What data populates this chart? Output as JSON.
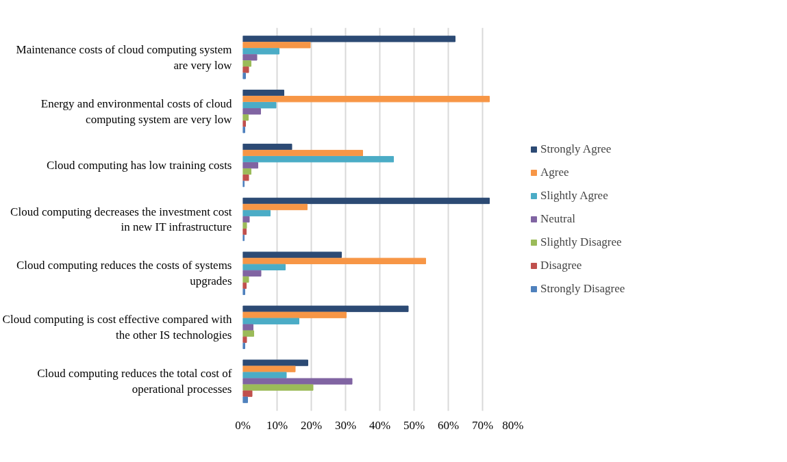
{
  "chart_data": {
    "type": "bar",
    "orientation": "horizontal",
    "categories": [
      "Maintenance costs of cloud computing system\nare very low",
      "Energy and environmental costs of cloud\ncomputing system are very low",
      "Cloud computing has low training costs",
      "Cloud computing decreases the investment cost\nin new IT infrastructure",
      "Cloud computing reduces the costs of systems\nupgrades",
      "Cloud computing is cost effective compared with\nthe other IS technologies",
      "Cloud computing reduces the total cost of\noperational processes"
    ],
    "series": [
      {
        "name": "Strongly Agree",
        "color": "#2c4a74",
        "values": [
          62,
          12,
          14.3,
          72,
          28.8,
          48.3,
          19
        ]
      },
      {
        "name": "Agree",
        "color": "#f79646",
        "values": [
          19.7,
          72,
          35,
          18.8,
          53.4,
          30.2,
          15.3
        ]
      },
      {
        "name": "Slightly Agree",
        "color": "#4bacc6",
        "values": [
          10.6,
          9.7,
          44,
          8,
          12.4,
          16.4,
          12.7
        ]
      },
      {
        "name": "Neutral",
        "color": "#8064a2",
        "values": [
          4.1,
          5.2,
          4.4,
          1.9,
          5.3,
          3,
          31.9
        ]
      },
      {
        "name": "Slightly Disagree",
        "color": "#9bbb59",
        "values": [
          2.4,
          1.6,
          2.4,
          1.1,
          1.7,
          3.2,
          20.5
        ]
      },
      {
        "name": "Disagree",
        "color": "#c0504d",
        "values": [
          1.7,
          0.8,
          1.7,
          1,
          1,
          1.1,
          2.7
        ]
      },
      {
        "name": "Strongly Disagree",
        "color": "#4f81bd",
        "values": [
          0.8,
          0.6,
          0.4,
          0.4,
          0.6,
          0.6,
          1.4
        ]
      }
    ],
    "xlim": [
      0,
      80
    ],
    "xticks": [
      {
        "value": 0,
        "label": "0%"
      },
      {
        "value": 10,
        "label": "10%"
      },
      {
        "value": 20,
        "label": "20%"
      },
      {
        "value": 30,
        "label": "30%"
      },
      {
        "value": 40,
        "label": "40%"
      },
      {
        "value": 50,
        "label": "50%"
      },
      {
        "value": 60,
        "label": "60%"
      },
      {
        "value": 70,
        "label": "70%"
      },
      {
        "value": 80,
        "label": "80%"
      }
    ],
    "grid": "x",
    "legend": "right"
  }
}
